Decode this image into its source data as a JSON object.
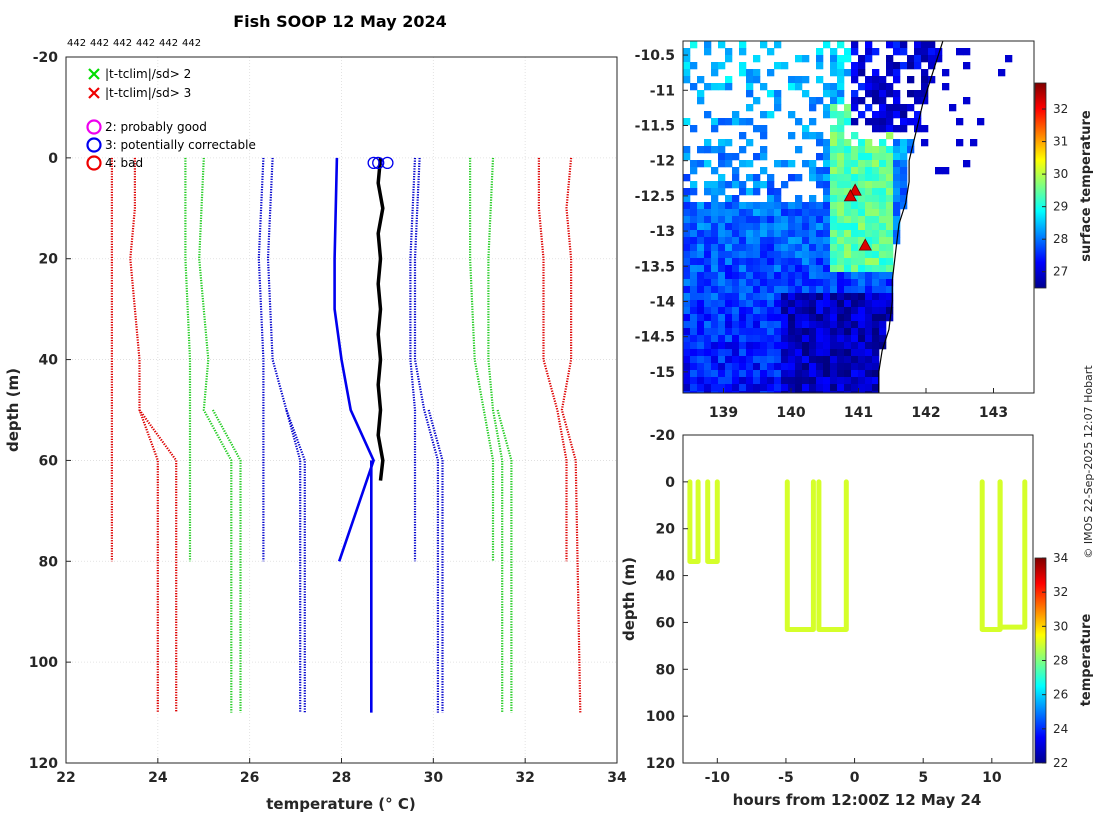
{
  "title": "Fish SOOP 12 May 2024",
  "credit": "© IMOS 22-Sep-2025 12:07 Hobart",
  "chart_data": [
    {
      "type": "line",
      "name": "profile",
      "xlabel": "temperature (° C)",
      "ylabel": "depth (m)",
      "xlim": [
        22,
        34
      ],
      "ylim": [
        -20,
        120
      ],
      "y_inverted": true,
      "grid": true,
      "x_ticks": [
        22,
        24,
        26,
        28,
        30,
        32,
        34
      ],
      "y_ticks": [
        -20,
        0,
        20,
        40,
        60,
        80,
        100,
        120
      ],
      "top_labels": [
        "442",
        "442",
        "442",
        "442",
        "442",
        "442"
      ],
      "legend": {
        "position": "top-left",
        "entries": [
          {
            "marker": "x",
            "color": "#00dd00",
            "label": "|t-tclim|/sd> 2"
          },
          {
            "marker": "x",
            "color": "#ee0000",
            "label": "|t-tclim|/sd> 3"
          },
          {
            "marker": "o",
            "color": "#ee00ee",
            "label": "2: probably good"
          },
          {
            "marker": "o",
            "color": "#0000ee",
            "label": "3: potentially correctable"
          },
          {
            "marker": "o",
            "color": "#ee0000",
            "label": "4: bad"
          }
        ]
      },
      "series": [
        {
          "name": "clim-low-3sd-a",
          "color": "#dd0000",
          "style": "dotted",
          "depth": [
            0,
            20,
            40,
            50,
            60,
            80
          ],
          "temp": [
            23.0,
            23.0,
            23.0,
            23.0,
            23.0,
            23.0
          ]
        },
        {
          "name": "clim-high-3sd-a",
          "color": "#dd0000",
          "style": "dotted",
          "depth": [
            0,
            10,
            20,
            40,
            50,
            60,
            80
          ],
          "temp": [
            32.3,
            32.3,
            32.4,
            32.4,
            32.7,
            32.9,
            32.9
          ]
        },
        {
          "name": "clim-low-3sd-b",
          "color": "#dd0000",
          "style": "dotted",
          "depth": [
            0,
            10,
            20,
            40,
            50,
            60,
            110
          ],
          "temp": [
            23.5,
            23.5,
            23.4,
            23.6,
            23.6,
            24.0,
            24.0
          ]
        },
        {
          "name": "clim-high-3sd-b",
          "color": "#dd0000",
          "style": "dotted",
          "depth": [
            0,
            10,
            20,
            40,
            50,
            60,
            110
          ],
          "temp": [
            33.0,
            32.9,
            33.0,
            33.0,
            32.8,
            33.1,
            33.2
          ]
        },
        {
          "name": "clim-low-3sd-c",
          "color": "#dd0000",
          "style": "dotted",
          "depth": [
            50,
            60,
            110
          ],
          "temp": [
            23.6,
            24.4,
            24.4
          ]
        },
        {
          "name": "clim-low-2sd-a",
          "color": "#22cc22",
          "style": "dotted",
          "depth": [
            0,
            20,
            40,
            50,
            60,
            80
          ],
          "temp": [
            24.6,
            24.6,
            24.7,
            24.7,
            24.7,
            24.7
          ]
        },
        {
          "name": "clim-high-2sd-a",
          "color": "#22cc22",
          "style": "dotted",
          "depth": [
            0,
            20,
            40,
            50,
            60,
            80
          ],
          "temp": [
            30.8,
            30.8,
            30.9,
            31.1,
            31.3,
            31.3
          ]
        },
        {
          "name": "clim-low-2sd-b",
          "color": "#22cc22",
          "style": "dotted",
          "depth": [
            0,
            20,
            40,
            50,
            60,
            110
          ],
          "temp": [
            25.0,
            24.9,
            25.1,
            25.0,
            25.6,
            25.6
          ]
        },
        {
          "name": "clim-high-2sd-b",
          "color": "#22cc22",
          "style": "dotted",
          "depth": [
            0,
            20,
            40,
            50,
            60,
            110
          ],
          "temp": [
            31.3,
            31.2,
            31.2,
            31.3,
            31.5,
            31.5
          ]
        },
        {
          "name": "clim-low-2sd-c",
          "color": "#22cc22",
          "style": "dotted",
          "depth": [
            50,
            60,
            110
          ],
          "temp": [
            25.2,
            25.8,
            25.8
          ]
        },
        {
          "name": "clim-high-2sd-c",
          "color": "#22cc22",
          "style": "dotted",
          "depth": [
            50,
            60,
            110
          ],
          "temp": [
            31.4,
            31.7,
            31.7
          ]
        },
        {
          "name": "clim-low-1sd-a",
          "color": "#0000cc",
          "style": "dotted",
          "depth": [
            0,
            20,
            40,
            50,
            60,
            80
          ],
          "temp": [
            26.3,
            26.2,
            26.3,
            26.3,
            26.3,
            26.3
          ]
        },
        {
          "name": "clim-high-1sd-a",
          "color": "#0000cc",
          "style": "dotted",
          "depth": [
            0,
            20,
            40,
            50,
            60,
            80
          ],
          "temp": [
            29.6,
            29.5,
            29.5,
            29.6,
            29.6,
            29.6
          ]
        },
        {
          "name": "clim-low-1sd-b",
          "color": "#0000cc",
          "style": "dotted",
          "depth": [
            0,
            20,
            40,
            50,
            60,
            110
          ],
          "temp": [
            26.5,
            26.4,
            26.5,
            26.8,
            27.1,
            27.1
          ]
        },
        {
          "name": "clim-high-1sd-b",
          "color": "#0000cc",
          "style": "dotted",
          "depth": [
            0,
            20,
            40,
            50,
            60,
            110
          ],
          "temp": [
            29.7,
            29.6,
            29.6,
            29.8,
            30.1,
            30.1
          ]
        },
        {
          "name": "clim-low-1sd-c",
          "color": "#0000cc",
          "style": "dotted",
          "depth": [
            50,
            60,
            110
          ],
          "temp": [
            26.8,
            27.2,
            27.2
          ]
        },
        {
          "name": "clim-high-1sd-c",
          "color": "#0000cc",
          "style": "dotted",
          "depth": [
            50,
            60,
            110
          ],
          "temp": [
            29.9,
            30.2,
            30.2
          ]
        },
        {
          "name": "clim-mean-a",
          "color": "#0000ee",
          "style": "solid",
          "depth": [
            0,
            20,
            30,
            40,
            50,
            60,
            80
          ],
          "temp": [
            27.9,
            27.85,
            27.85,
            28.0,
            28.2,
            28.7,
            27.95
          ]
        },
        {
          "name": "clim-mean-b",
          "color": "#0000ee",
          "style": "solid",
          "depth": [
            60,
            110
          ],
          "temp": [
            28.65,
            28.65
          ]
        },
        {
          "name": "observed",
          "color": "#000000",
          "style": "solid",
          "depth": [
            0,
            5,
            10,
            15,
            20,
            25,
            30,
            35,
            40,
            45,
            50,
            55,
            60,
            64
          ],
          "temp": [
            28.85,
            28.8,
            28.9,
            28.8,
            28.85,
            28.8,
            28.85,
            28.8,
            28.85,
            28.8,
            28.85,
            28.8,
            28.9,
            28.85
          ]
        }
      ],
      "qc_circles": {
        "color": "#0000ee",
        "depth": [
          1,
          1,
          1
        ],
        "temp": [
          28.7,
          28.8,
          29.0
        ]
      }
    },
    {
      "type": "heatmap",
      "name": "map",
      "colorbar_label": "surface temperature",
      "xlim": [
        138.4,
        143.6
      ],
      "ylim": [
        -15.3,
        -10.3
      ],
      "x_ticks": [
        139,
        140,
        141,
        142,
        143
      ],
      "y_ticks": [
        -10.5,
        -11,
        -11.5,
        -12,
        -12.5,
        -13,
        -13.5,
        -14,
        -14.5,
        -15
      ],
      "y_tick_labels": [
        "-10.5",
        "-11",
        "-11.5",
        "-12",
        "-12.5",
        "-13",
        "-13.5",
        "-14",
        "-14.5",
        "-15"
      ],
      "clim": [
        26.5,
        32.8
      ],
      "colorbar_ticks": [
        27,
        28,
        29,
        30,
        31,
        32
      ],
      "track_markers": [
        {
          "lon": 140.95,
          "lat": -12.42,
          "color": "#dd0000"
        },
        {
          "lon": 140.88,
          "lat": -12.5,
          "color": "#dd0000"
        },
        {
          "lon": 141.1,
          "lat": -13.2,
          "color": "#dd0000"
        }
      ]
    },
    {
      "type": "scatter",
      "name": "time-depth",
      "xlabel": "hours from 12:00Z 12 May 24",
      "ylabel": "depth (m)",
      "colorbar_label": "temperature",
      "xlim": [
        -12.5,
        13.0
      ],
      "ylim": [
        -20,
        120
      ],
      "y_inverted": true,
      "x_ticks": [
        -10,
        -5,
        0,
        5,
        10
      ],
      "y_ticks": [
        -20,
        0,
        20,
        40,
        60,
        80,
        100,
        120
      ],
      "clim": [
        22,
        34
      ],
      "colorbar_ticks": [
        22,
        24,
        26,
        28,
        30,
        32,
        34
      ],
      "point_temp": 29.0,
      "casts": [
        {
          "t0": -12.0,
          "t1": -11.4,
          "max_depth": 34
        },
        {
          "t0": -10.7,
          "t1": -10.0,
          "max_depth": 34
        },
        {
          "t0": -4.9,
          "t1": -3.0,
          "max_depth": 63
        },
        {
          "t0": -2.6,
          "t1": -0.6,
          "max_depth": 63
        },
        {
          "t0": 9.3,
          "t1": 10.6,
          "max_depth": 63
        },
        {
          "t0": 10.6,
          "t1": 12.4,
          "max_depth": 62
        }
      ]
    }
  ]
}
